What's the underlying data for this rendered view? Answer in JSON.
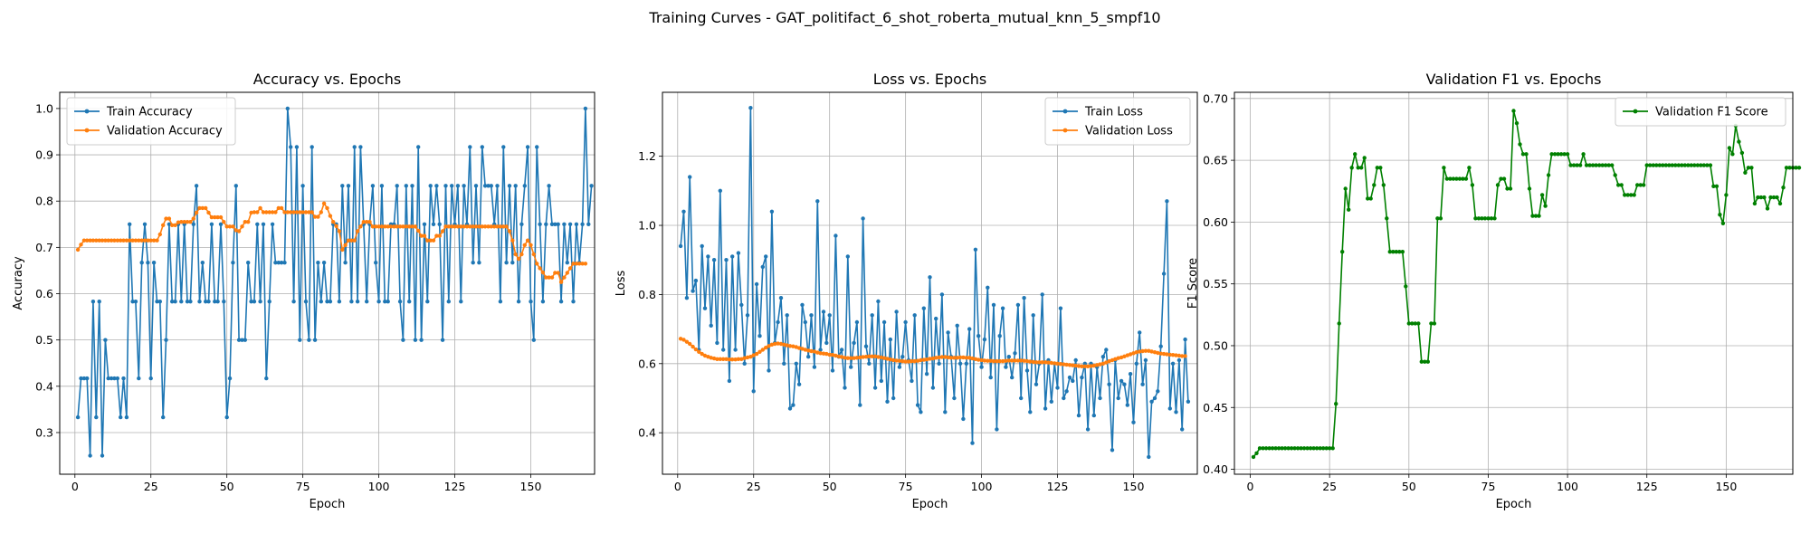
{
  "figure": {
    "suptitle": "Training Curves - GAT_politifact_6_shot_roberta_mutual_knn_5_smpf10"
  },
  "chart_data": [
    {
      "type": "line",
      "title": "Accuracy vs. Epochs",
      "xlabel": "Epoch",
      "ylabel": "Accuracy",
      "xlim": [
        -5,
        171
      ],
      "ylim": [
        0.21,
        1.035
      ],
      "xticks": [
        0,
        25,
        50,
        75,
        100,
        125,
        150
      ],
      "yticks": [
        0.3,
        0.4,
        0.5,
        0.6,
        0.7,
        0.8,
        0.9,
        1.0
      ],
      "ytick_labels": [
        "0.3",
        "0.4",
        "0.5",
        "0.6",
        "0.7",
        "0.8",
        "0.9",
        "1.0"
      ],
      "grid": true,
      "legend_position": "upper-left",
      "series": [
        {
          "name": "Train Accuracy",
          "color": "#1f77b4",
          "values": [
            0.333,
            0.417,
            0.417,
            0.417,
            0.25,
            0.583,
            0.333,
            0.583,
            0.25,
            0.5,
            0.417,
            0.417,
            0.417,
            0.417,
            0.333,
            0.417,
            0.333,
            0.75,
            0.583,
            0.583,
            0.417,
            0.667,
            0.75,
            0.667,
            0.417,
            0.667,
            0.583,
            0.583,
            0.333,
            0.5,
            0.75,
            0.583,
            0.583,
            0.75,
            0.583,
            0.75,
            0.583,
            0.583,
            0.75,
            0.833,
            0.583,
            0.667,
            0.583,
            0.583,
            0.75,
            0.583,
            0.583,
            0.75,
            0.583,
            0.333,
            0.417,
            0.667,
            0.833,
            0.5,
            0.5,
            0.5,
            0.667,
            0.583,
            0.583,
            0.75,
            0.583,
            0.75,
            0.417,
            0.583,
            0.75,
            0.667,
            0.667,
            0.667,
            0.667,
            1.0,
            0.917,
            0.583,
            0.917,
            0.5,
            0.833,
            0.583,
            0.5,
            0.917,
            0.5,
            0.667,
            0.583,
            0.667,
            0.583,
            0.583,
            0.75,
            0.75,
            0.583,
            0.833,
            0.667,
            0.833,
            0.583,
            0.917,
            0.583,
            0.917,
            0.75,
            0.583,
            0.75,
            0.833,
            0.667,
            0.583,
            0.833,
            0.583,
            0.583,
            0.75,
            0.75,
            0.833,
            0.583,
            0.5,
            0.833,
            0.583,
            0.833,
            0.5,
            0.917,
            0.5,
            0.75,
            0.583,
            0.833,
            0.75,
            0.833,
            0.75,
            0.5,
            0.833,
            0.583,
            0.833,
            0.75,
            0.833,
            0.583,
            0.833,
            0.75,
            0.917,
            0.667,
            0.833,
            0.667,
            0.917,
            0.833,
            0.833,
            0.833,
            0.75,
            0.833,
            0.583,
            0.917,
            0.667,
            0.833,
            0.667,
            0.833,
            0.583,
            0.75,
            0.833,
            0.917,
            0.583,
            0.5,
            0.917,
            0.75,
            0.583,
            0.75,
            0.833,
            0.75,
            0.75,
            0.75,
            0.583,
            0.75,
            0.667,
            0.75,
            0.583,
            0.75,
            0.667,
            0.75,
            1.0,
            0.75,
            0.833
          ]
        },
        {
          "name": "Validation Accuracy",
          "color": "#ff7f0e",
          "values": [
            0.695,
            0.706,
            0.715,
            0.715,
            0.715,
            0.715,
            0.715,
            0.715,
            0.715,
            0.715,
            0.715,
            0.715,
            0.715,
            0.715,
            0.715,
            0.715,
            0.715,
            0.715,
            0.715,
            0.715,
            0.715,
            0.715,
            0.715,
            0.715,
            0.715,
            0.715,
            0.715,
            0.728,
            0.748,
            0.762,
            0.762,
            0.748,
            0.748,
            0.754,
            0.755,
            0.755,
            0.755,
            0.755,
            0.762,
            0.775,
            0.785,
            0.785,
            0.785,
            0.775,
            0.765,
            0.765,
            0.765,
            0.765,
            0.755,
            0.745,
            0.745,
            0.745,
            0.737,
            0.735,
            0.745,
            0.755,
            0.755,
            0.775,
            0.776,
            0.776,
            0.785,
            0.776,
            0.776,
            0.776,
            0.776,
            0.776,
            0.785,
            0.785,
            0.776,
            0.776,
            0.776,
            0.776,
            0.776,
            0.776,
            0.776,
            0.776,
            0.776,
            0.776,
            0.766,
            0.766,
            0.776,
            0.795,
            0.785,
            0.768,
            0.755,
            0.746,
            0.735,
            0.695,
            0.705,
            0.715,
            0.715,
            0.715,
            0.735,
            0.745,
            0.755,
            0.755,
            0.755,
            0.745,
            0.745,
            0.745,
            0.745,
            0.745,
            0.745,
            0.745,
            0.745,
            0.745,
            0.745,
            0.745,
            0.745,
            0.745,
            0.745,
            0.745,
            0.736,
            0.725,
            0.725,
            0.715,
            0.715,
            0.715,
            0.725,
            0.725,
            0.735,
            0.745,
            0.745,
            0.745,
            0.745,
            0.745,
            0.745,
            0.745,
            0.745,
            0.745,
            0.745,
            0.745,
            0.745,
            0.745,
            0.745,
            0.745,
            0.745,
            0.745,
            0.745,
            0.745,
            0.745,
            0.745,
            0.735,
            0.715,
            0.685,
            0.675,
            0.685,
            0.705,
            0.715,
            0.705,
            0.685,
            0.665,
            0.655,
            0.646,
            0.635,
            0.635,
            0.635,
            0.645,
            0.645,
            0.625,
            0.635,
            0.645,
            0.655,
            0.665,
            0.665,
            0.665,
            0.665,
            0.665
          ]
        }
      ]
    },
    {
      "type": "line",
      "title": "Loss vs. Epochs",
      "xlabel": "Epoch",
      "ylabel": "Loss",
      "xlim": [
        -5,
        171
      ],
      "ylim": [
        0.28,
        1.385
      ],
      "xticks": [
        0,
        25,
        50,
        75,
        100,
        125,
        150
      ],
      "yticks": [
        0.4,
        0.6,
        0.8,
        1.0,
        1.2
      ],
      "ytick_labels": [
        "0.4",
        "0.6",
        "0.8",
        "1.0",
        "1.2"
      ],
      "grid": true,
      "legend_position": "upper-right",
      "series": [
        {
          "name": "Train Loss",
          "color": "#1f77b4",
          "values": [
            0.94,
            1.04,
            0.79,
            1.14,
            0.81,
            0.84,
            0.64,
            0.94,
            0.76,
            0.91,
            0.71,
            0.9,
            0.66,
            1.1,
            0.64,
            0.9,
            0.55,
            0.91,
            0.64,
            0.92,
            0.77,
            0.6,
            0.74,
            1.34,
            0.52,
            0.83,
            0.68,
            0.88,
            0.91,
            0.58,
            1.04,
            0.66,
            0.72,
            0.79,
            0.6,
            0.74,
            0.47,
            0.48,
            0.6,
            0.54,
            0.77,
            0.72,
            0.62,
            0.74,
            0.59,
            1.07,
            0.64,
            0.75,
            0.66,
            0.74,
            0.58,
            0.97,
            0.62,
            0.64,
            0.53,
            0.91,
            0.59,
            0.66,
            0.72,
            0.48,
            1.02,
            0.65,
            0.6,
            0.74,
            0.53,
            0.78,
            0.55,
            0.72,
            0.49,
            0.67,
            0.5,
            0.75,
            0.59,
            0.62,
            0.72,
            0.61,
            0.55,
            0.74,
            0.48,
            0.46,
            0.76,
            0.57,
            0.85,
            0.53,
            0.73,
            0.6,
            0.8,
            0.46,
            0.69,
            0.62,
            0.5,
            0.71,
            0.6,
            0.44,
            0.6,
            0.7,
            0.37,
            0.93,
            0.68,
            0.59,
            0.67,
            0.82,
            0.56,
            0.77,
            0.41,
            0.68,
            0.76,
            0.59,
            0.62,
            0.56,
            0.63,
            0.77,
            0.5,
            0.79,
            0.58,
            0.46,
            0.74,
            0.54,
            0.6,
            0.8,
            0.47,
            0.61,
            0.49,
            0.6,
            0.53,
            0.76,
            0.5,
            0.52,
            0.56,
            0.55,
            0.61,
            0.45,
            0.56,
            0.6,
            0.41,
            0.6,
            0.45,
            0.59,
            0.5,
            0.62,
            0.64,
            0.54,
            0.35,
            0.61,
            0.5,
            0.55,
            0.54,
            0.48,
            0.57,
            0.43,
            0.6,
            0.69,
            0.54,
            0.61,
            0.33,
            0.49,
            0.5,
            0.52,
            0.65,
            0.86,
            1.07,
            0.47,
            0.6,
            0.46,
            0.61,
            0.41,
            0.67,
            0.49
          ]
        },
        {
          "name": "Validation Loss",
          "color": "#ff7f0e",
          "values": [
            0.672,
            0.669,
            0.663,
            0.657,
            0.649,
            0.641,
            0.634,
            0.628,
            0.623,
            0.62,
            0.617,
            0.615,
            0.613,
            0.613,
            0.613,
            0.613,
            0.612,
            0.612,
            0.612,
            0.613,
            0.613,
            0.616,
            0.618,
            0.62,
            0.624,
            0.628,
            0.634,
            0.64,
            0.646,
            0.651,
            0.655,
            0.657,
            0.658,
            0.657,
            0.655,
            0.653,
            0.651,
            0.65,
            0.648,
            0.645,
            0.643,
            0.64,
            0.638,
            0.636,
            0.635,
            0.632,
            0.63,
            0.629,
            0.628,
            0.626,
            0.625,
            0.623,
            0.621,
            0.619,
            0.617,
            0.616,
            0.616,
            0.616,
            0.617,
            0.618,
            0.619,
            0.62,
            0.621,
            0.621,
            0.621,
            0.619,
            0.618,
            0.616,
            0.614,
            0.612,
            0.61,
            0.609,
            0.608,
            0.607,
            0.606,
            0.606,
            0.607,
            0.607,
            0.608,
            0.61,
            0.611,
            0.612,
            0.614,
            0.615,
            0.617,
            0.618,
            0.619,
            0.619,
            0.618,
            0.617,
            0.617,
            0.617,
            0.618,
            0.618,
            0.617,
            0.617,
            0.615,
            0.613,
            0.611,
            0.61,
            0.609,
            0.608,
            0.608,
            0.607,
            0.607,
            0.607,
            0.607,
            0.608,
            0.609,
            0.609,
            0.609,
            0.609,
            0.609,
            0.608,
            0.607,
            0.606,
            0.605,
            0.604,
            0.604,
            0.604,
            0.604,
            0.603,
            0.602,
            0.601,
            0.6,
            0.599,
            0.598,
            0.597,
            0.596,
            0.595,
            0.594,
            0.593,
            0.592,
            0.592,
            0.592,
            0.593,
            0.594,
            0.596,
            0.598,
            0.6,
            0.603,
            0.607,
            0.61,
            0.613,
            0.616,
            0.618,
            0.621,
            0.624,
            0.627,
            0.63,
            0.633,
            0.635,
            0.636,
            0.637,
            0.637,
            0.635,
            0.633,
            0.631,
            0.629,
            0.628,
            0.627,
            0.626,
            0.625,
            0.624,
            0.623,
            0.622,
            0.622
          ]
        }
      ]
    },
    {
      "type": "line",
      "title": "Validation F1 vs. Epochs",
      "xlabel": "Epoch",
      "ylabel": "F1 Score",
      "xlim": [
        -5,
        171
      ],
      "ylim": [
        0.396,
        0.705
      ],
      "xticks": [
        0,
        25,
        50,
        75,
        100,
        125,
        150
      ],
      "yticks": [
        0.4,
        0.45,
        0.5,
        0.55,
        0.6,
        0.65,
        0.7
      ],
      "ytick_labels": [
        "0.40",
        "0.45",
        "0.50",
        "0.55",
        "0.60",
        "0.65",
        "0.70"
      ],
      "grid": true,
      "legend_position": "upper-right",
      "series": [
        {
          "name": "Validation F1 Score",
          "color": "#008000",
          "values": [
            0.41,
            0.413,
            0.417,
            0.417,
            0.417,
            0.417,
            0.417,
            0.417,
            0.417,
            0.417,
            0.417,
            0.417,
            0.417,
            0.417,
            0.417,
            0.417,
            0.417,
            0.417,
            0.417,
            0.417,
            0.417,
            0.417,
            0.417,
            0.417,
            0.417,
            0.417,
            0.453,
            0.518,
            0.576,
            0.627,
            0.61,
            0.644,
            0.655,
            0.644,
            0.644,
            0.652,
            0.619,
            0.619,
            0.63,
            0.644,
            0.644,
            0.63,
            0.603,
            0.576,
            0.576,
            0.576,
            0.576,
            0.576,
            0.548,
            0.518,
            0.518,
            0.518,
            0.518,
            0.487,
            0.487,
            0.487,
            0.518,
            0.518,
            0.603,
            0.603,
            0.644,
            0.635,
            0.635,
            0.635,
            0.635,
            0.635,
            0.635,
            0.635,
            0.644,
            0.63,
            0.603,
            0.603,
            0.603,
            0.603,
            0.603,
            0.603,
            0.603,
            0.63,
            0.635,
            0.635,
            0.627,
            0.627,
            0.69,
            0.68,
            0.663,
            0.655,
            0.655,
            0.627,
            0.605,
            0.605,
            0.605,
            0.622,
            0.613,
            0.638,
            0.655,
            0.655,
            0.655,
            0.655,
            0.655,
            0.655,
            0.646,
            0.646,
            0.646,
            0.646,
            0.655,
            0.646,
            0.646,
            0.646,
            0.646,
            0.646,
            0.646,
            0.646,
            0.646,
            0.646,
            0.638,
            0.63,
            0.63,
            0.622,
            0.622,
            0.622,
            0.622,
            0.63,
            0.63,
            0.63,
            0.646,
            0.646,
            0.646,
            0.646,
            0.646,
            0.646,
            0.646,
            0.646,
            0.646,
            0.646,
            0.646,
            0.646,
            0.646,
            0.646,
            0.646,
            0.646,
            0.646,
            0.646,
            0.646,
            0.646,
            0.646,
            0.629,
            0.629,
            0.606,
            0.599,
            0.622,
            0.66,
            0.655,
            0.678,
            0.665,
            0.656,
            0.64,
            0.644,
            0.644,
            0.615,
            0.62,
            0.62,
            0.62,
            0.611,
            0.62,
            0.62,
            0.62,
            0.615,
            0.628,
            0.644,
            0.644,
            0.644,
            0.644,
            0.644
          ]
        }
      ]
    }
  ]
}
